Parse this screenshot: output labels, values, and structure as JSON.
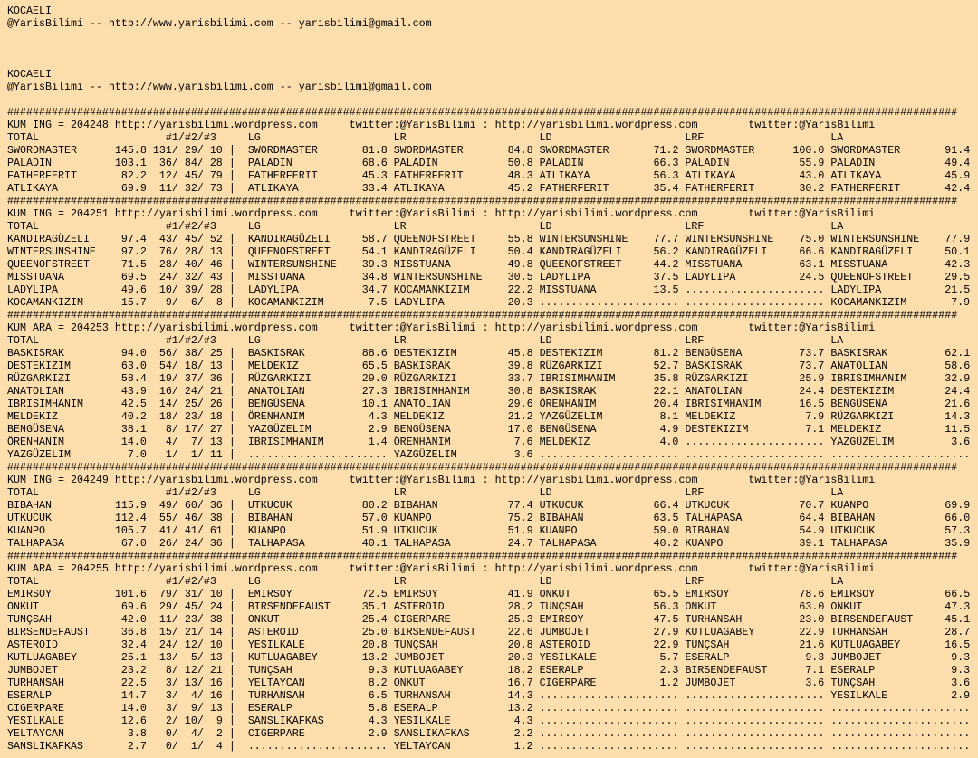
{
  "header_top": {
    "title": "KOCAELI",
    "contact": "@YarisBilimi -- http://www.yarisbilimi.com -- yarisbilimi@gmail.com"
  },
  "header_repeat": {
    "title": "KOCAELI",
    "contact": "@YarisBilimi -- http://www.yarisbilimi.com -- yarisbilimi@gmail.com"
  },
  "rule": "######################################################################################################################################################",
  "url": "http://yarisbilimi.wordpress.com",
  "twitter": "twitter:@YarisBilimi",
  "divider": ":",
  "total_label": "TOTAL",
  "places_label": "#1/#2/#3",
  "place_sep": "/",
  "column_sep": "|",
  "empty_fill": "......................",
  "column_keys": [
    "LG",
    "LR",
    "LD",
    "LRF",
    "LA"
  ],
  "blocks": [
    {
      "title": "KUM ING = 204248",
      "totals": [
        {
          "name": "SWORDMASTER",
          "total": "145.8",
          "places": [
            131,
            29,
            10
          ]
        },
        {
          "name": "PALADIN",
          "total": "103.1",
          "places": [
            36,
            84,
            28
          ]
        },
        {
          "name": "FATHERFERIT",
          "total": "82.2",
          "places": [
            12,
            45,
            79
          ]
        },
        {
          "name": "ATLIKAYA",
          "total": "69.9",
          "places": [
            11,
            32,
            73
          ]
        }
      ],
      "columns": {
        "LG": [
          [
            "SWORDMASTER",
            "81.8"
          ],
          [
            "PALADIN",
            "68.6"
          ],
          [
            "FATHERFERIT",
            "45.3"
          ],
          [
            "ATLIKAYA",
            "33.4"
          ]
        ],
        "LR": [
          [
            "SWORDMASTER",
            "84.8"
          ],
          [
            "PALADIN",
            "50.8"
          ],
          [
            "FATHERFERIT",
            "48.3"
          ],
          [
            "ATLIKAYA",
            "45.2"
          ]
        ],
        "LD": [
          [
            "SWORDMASTER",
            "71.2"
          ],
          [
            "PALADIN",
            "66.3"
          ],
          [
            "ATLIKAYA",
            "56.3"
          ],
          [
            "FATHERFERIT",
            "35.4"
          ]
        ],
        "LRF": [
          [
            "SWORDMASTER",
            "100.0"
          ],
          [
            "PALADIN",
            "55.9"
          ],
          [
            "ATLIKAYA",
            "43.0"
          ],
          [
            "FATHERFERIT",
            "30.2"
          ]
        ],
        "LA": [
          [
            "SWORDMASTER",
            "91.4"
          ],
          [
            "PALADIN",
            "49.4"
          ],
          [
            "ATLIKAYA",
            "45.9"
          ],
          [
            "FATHERFERIT",
            "42.4"
          ]
        ]
      }
    },
    {
      "title": "KUM ING = 204251",
      "totals": [
        {
          "name": "KANDIRAGÜZELI",
          "total": "97.4",
          "places": [
            43,
            45,
            52
          ]
        },
        {
          "name": "WINTERSUNSHINE",
          "total": "97.2",
          "places": [
            76,
            28,
            13
          ]
        },
        {
          "name": "QUEENOFSTREET",
          "total": "71.5",
          "places": [
            28,
            40,
            46
          ]
        },
        {
          "name": "MISSTUANA",
          "total": "69.5",
          "places": [
            24,
            32,
            43
          ]
        },
        {
          "name": "LADYLIPA",
          "total": "49.6",
          "places": [
            10,
            39,
            28
          ]
        },
        {
          "name": "KOCAMANKIZIM",
          "total": "15.7",
          "places": [
            9,
            6,
            8
          ]
        }
      ],
      "columns": {
        "LG": [
          [
            "KANDIRAGÜZELI",
            "58.7"
          ],
          [
            "QUEENOFSTREET",
            "54.1"
          ],
          [
            "WINTERSUNSHINE",
            "39.3"
          ],
          [
            "MISSTUANA",
            "34.8"
          ],
          [
            "LADYLIPA",
            "34.7"
          ],
          [
            "KOCAMANKIZIM",
            "7.5"
          ]
        ],
        "LR": [
          [
            "QUEENOFSTREET",
            "55.8"
          ],
          [
            "KANDIRAGÜZELI",
            "50.4"
          ],
          [
            "MISSTUANA",
            "49.8"
          ],
          [
            "WINTERSUNSHINE",
            "30.5"
          ],
          [
            "KOCAMANKIZIM",
            "22.2"
          ],
          [
            "LADYLIPA",
            "20.3"
          ]
        ],
        "LD": [
          [
            "WINTERSUNSHINE",
            "77.7"
          ],
          [
            "KANDIRAGÜZELI",
            "56.2"
          ],
          [
            "QUEENOFSTREET",
            "44.2"
          ],
          [
            "LADYLIPA",
            "37.5"
          ],
          [
            "MISSTUANA",
            "13.5"
          ],
          null
        ],
        "LRF": [
          [
            "WINTERSUNSHINE",
            "75.0"
          ],
          [
            "KANDIRAGÜZELI",
            "66.6"
          ],
          [
            "MISSTUANA",
            "63.1"
          ],
          [
            "LADYLIPA",
            "24.5"
          ],
          null,
          null
        ],
        "LA": [
          [
            "WINTERSUNSHINE",
            "77.9"
          ],
          [
            "KANDIRAGÜZELI",
            "50.1"
          ],
          [
            "MISSTUANA",
            "42.3"
          ],
          [
            "QUEENOFSTREET",
            "29.5"
          ],
          [
            "LADYLIPA",
            "21.5"
          ],
          [
            "KOCAMANKIZIM",
            "7.9"
          ]
        ]
      }
    },
    {
      "title": "KUM ARA = 204253",
      "totals": [
        {
          "name": "BASKISRAK",
          "total": "94.0",
          "places": [
            56,
            38,
            25
          ]
        },
        {
          "name": "DESTEKIZIM",
          "total": "63.0",
          "places": [
            54,
            18,
            13
          ]
        },
        {
          "name": "RÜZGARKIZI",
          "total": "58.4",
          "places": [
            19,
            37,
            36
          ]
        },
        {
          "name": "ANATOLIAN",
          "total": "43.9",
          "places": [
            16,
            24,
            21
          ]
        },
        {
          "name": "IBRISIMHANIM",
          "total": "42.5",
          "places": [
            14,
            25,
            26
          ]
        },
        {
          "name": "MELDEKIZ",
          "total": "40.2",
          "places": [
            18,
            23,
            18
          ]
        },
        {
          "name": "BENGÜSENA",
          "total": "38.1",
          "places": [
            8,
            17,
            27
          ]
        },
        {
          "name": "ÖRENHANIM",
          "total": "14.0",
          "places": [
            4,
            7,
            13
          ]
        },
        {
          "name": "YAZGÜZELIM",
          "total": "7.0",
          "places": [
            1,
            1,
            11
          ]
        }
      ],
      "columns": {
        "LG": [
          [
            "BASKISRAK",
            "88.6"
          ],
          [
            "MELDEKIZ",
            "65.5"
          ],
          [
            "RÜZGARKIZI",
            "29.0"
          ],
          [
            "ANATOLIAN",
            "27.3"
          ],
          [
            "BENGÜSENA",
            "10.1"
          ],
          [
            "ÖRENHANIM",
            "4.3"
          ],
          [
            "YAZGÜZELIM",
            "2.9"
          ],
          [
            "IBRISIMHANIM",
            "1.4"
          ],
          null
        ],
        "LR": [
          [
            "DESTEKIZIM",
            "45.8"
          ],
          [
            "BASKISRAK",
            "39.8"
          ],
          [
            "RÜZGARKIZI",
            "33.7"
          ],
          [
            "IBRISIMHANIM",
            "30.8"
          ],
          [
            "ANATOLIAN",
            "29.6"
          ],
          [
            "MELDEKIZ",
            "21.2"
          ],
          [
            "BENGÜSENA",
            "17.0"
          ],
          [
            "ÖRENHANIM",
            "7.6"
          ],
          [
            "YAZGÜZELIM",
            "3.6"
          ]
        ],
        "LD": [
          [
            "DESTEKIZIM",
            "81.2"
          ],
          [
            "RÜZGARKIZI",
            "52.7"
          ],
          [
            "IBRISIMHANIM",
            "35.8"
          ],
          [
            "BASKISRAK",
            "22.1"
          ],
          [
            "ÖRENHANIM",
            "20.4"
          ],
          [
            "YAZGÜZELIM",
            "8.1"
          ],
          [
            "BENGÜSENA",
            "4.9"
          ],
          [
            "MELDEKIZ",
            "4.0"
          ],
          null
        ],
        "LRF": [
          [
            "BENGÜSENA",
            "73.7"
          ],
          [
            "BASKISRAK",
            "73.7"
          ],
          [
            "RÜZGARKIZI",
            "25.9"
          ],
          [
            "ANATOLIAN",
            "24.4"
          ],
          [
            "IBRISIMHANIM",
            "16.5"
          ],
          [
            "MELDEKIZ",
            "7.9"
          ],
          [
            "DESTEKIZIM",
            "7.1"
          ],
          null,
          null
        ],
        "LA": [
          [
            "BASKISRAK",
            "62.1"
          ],
          [
            "ANATOLIAN",
            "58.6"
          ],
          [
            "IBRISIMHANIM",
            "32.9"
          ],
          [
            "DESTEKIZIM",
            "24.4"
          ],
          [
            "BENGÜSENA",
            "21.6"
          ],
          [
            "RÜZGARKIZI",
            "14.3"
          ],
          [
            "MELDEKIZ",
            "11.5"
          ],
          [
            "YAZGÜZELIM",
            "3.6"
          ],
          null
        ]
      }
    },
    {
      "title": "KUM ING = 204249",
      "totals": [
        {
          "name": "BIBAHAN",
          "total": "115.9",
          "places": [
            49,
            60,
            36
          ]
        },
        {
          "name": "UTKUCUK",
          "total": "112.4",
          "places": [
            55,
            46,
            38
          ]
        },
        {
          "name": "KUANPO",
          "total": "105.7",
          "places": [
            41,
            41,
            61
          ]
        },
        {
          "name": "TALHAPASA",
          "total": "67.0",
          "places": [
            26,
            24,
            36
          ]
        }
      ],
      "columns": {
        "LG": [
          [
            "UTKUCUK",
            "80.2"
          ],
          [
            "BIBAHAN",
            "57.0"
          ],
          [
            "KUANPO",
            "51.9"
          ],
          [
            "TALHAPASA",
            "40.1"
          ]
        ],
        "LR": [
          [
            "BIBAHAN",
            "77.4"
          ],
          [
            "KUANPO",
            "75.2"
          ],
          [
            "UTKUCUK",
            "51.9"
          ],
          [
            "TALHAPASA",
            "24.7"
          ]
        ],
        "LD": [
          [
            "UTKUCUK",
            "66.4"
          ],
          [
            "BIBAHAN",
            "63.5"
          ],
          [
            "KUANPO",
            "59.0"
          ],
          [
            "TALHAPASA",
            "40.2"
          ]
        ],
        "LRF": [
          [
            "UTKUCUK",
            "70.7"
          ],
          [
            "TALHAPASA",
            "64.4"
          ],
          [
            "BIBAHAN",
            "54.9"
          ],
          [
            "KUANPO",
            "39.1"
          ]
        ],
        "LA": [
          [
            "KUANPO",
            "69.9"
          ],
          [
            "BIBAHAN",
            "66.0"
          ],
          [
            "UTKUCUK",
            "57.3"
          ],
          [
            "TALHAPASA",
            "35.9"
          ]
        ]
      }
    },
    {
      "title": "KUM ARA = 204255",
      "totals": [
        {
          "name": "EMIRSOY",
          "total": "101.6",
          "places": [
            79,
            31,
            10
          ]
        },
        {
          "name": "ONKUT",
          "total": "69.6",
          "places": [
            29,
            45,
            24
          ]
        },
        {
          "name": "TUNÇSAH",
          "total": "42.0",
          "places": [
            11,
            23,
            38
          ]
        },
        {
          "name": "BIRSENDEFAUST",
          "total": "36.8",
          "places": [
            15,
            21,
            14
          ]
        },
        {
          "name": "ASTEROID",
          "total": "32.4",
          "places": [
            24,
            12,
            10
          ]
        },
        {
          "name": "KUTLUAGABEY",
          "total": "25.1",
          "places": [
            13,
            5,
            13
          ]
        },
        {
          "name": "JUMBOJET",
          "total": "23.2",
          "places": [
            8,
            12,
            21
          ]
        },
        {
          "name": "TURHANSAH",
          "total": "22.5",
          "places": [
            3,
            13,
            16
          ]
        },
        {
          "name": "ESERALP",
          "total": "14.7",
          "places": [
            3,
            4,
            16
          ]
        },
        {
          "name": "CIGERPARE",
          "total": "14.0",
          "places": [
            3,
            9,
            13
          ]
        },
        {
          "name": "YESILKALE",
          "total": "12.6",
          "places": [
            2,
            10,
            9
          ]
        },
        {
          "name": "YELTAYCAN",
          "total": "3.8",
          "places": [
            0,
            4,
            2
          ]
        },
        {
          "name": "SANSLIKAFKAS",
          "total": "2.7",
          "places": [
            0,
            1,
            4
          ]
        }
      ],
      "columns": {
        "LG": [
          [
            "EMIRSOY",
            "72.5"
          ],
          [
            "BIRSENDEFAUST",
            "35.1"
          ],
          [
            "ONKUT",
            "25.4"
          ],
          [
            "ASTEROID",
            "25.0"
          ],
          [
            "YESILKALE",
            "20.8"
          ],
          [
            "KUTLUAGABEY",
            "13.2"
          ],
          [
            "TUNÇSAH",
            "9.3"
          ],
          [
            "YELTAYCAN",
            "8.2"
          ],
          [
            "TURHANSAH",
            "6.5"
          ],
          [
            "ESERALP",
            "5.8"
          ],
          [
            "SANSLIKAFKAS",
            "4.3"
          ],
          [
            "CIGERPARE",
            "2.9"
          ],
          null
        ],
        "LR": [
          [
            "EMIRSOY",
            "41.9"
          ],
          [
            "ASTEROID",
            "28.2"
          ],
          [
            "CIGERPARE",
            "25.3"
          ],
          [
            "BIRSENDEFAUST",
            "22.6"
          ],
          [
            "TUNÇSAH",
            "20.8"
          ],
          [
            "JUMBOJET",
            "20.3"
          ],
          [
            "KUTLUAGABEY",
            "18.2"
          ],
          [
            "ONKUT",
            "16.7"
          ],
          [
            "TURHANSAH",
            "14.3"
          ],
          [
            "ESERALP",
            "13.2"
          ],
          [
            "YESILKALE",
            "4.3"
          ],
          [
            "SANSLIKAFKAS",
            "2.2"
          ],
          [
            "YELTAYCAN",
            "1.2"
          ]
        ],
        "LD": [
          [
            "ONKUT",
            "65.5"
          ],
          [
            "TUNÇSAH",
            "56.3"
          ],
          [
            "EMIRSOY",
            "47.5"
          ],
          [
            "JUMBOJET",
            "27.9"
          ],
          [
            "ASTEROID",
            "22.9"
          ],
          [
            "YESILKALE",
            "5.7"
          ],
          [
            "ESERALP",
            "2.3"
          ],
          [
            "CIGERPARE",
            "1.2"
          ],
          null,
          null,
          null,
          null,
          null
        ],
        "LRF": [
          [
            "EMIRSOY",
            "78.6"
          ],
          [
            "ONKUT",
            "63.0"
          ],
          [
            "TURHANSAH",
            "23.0"
          ],
          [
            "KUTLUAGABEY",
            "22.9"
          ],
          [
            "TUNÇSAH",
            "21.6"
          ],
          [
            "ESERALP",
            "9.3"
          ],
          [
            "BIRSENDEFAUST",
            "7.1"
          ],
          [
            "JUMBOJET",
            "3.6"
          ],
          null,
          null,
          null,
          null,
          null
        ],
        "LA": [
          [
            "EMIRSOY",
            "66.5"
          ],
          [
            "ONKUT",
            "47.3"
          ],
          [
            "BIRSENDEFAUST",
            "45.1"
          ],
          [
            "TURHANSAH",
            "28.7"
          ],
          [
            "KUTLUAGABEY",
            "16.5"
          ],
          [
            "JUMBOJET",
            "9.3"
          ],
          [
            "ESERALP",
            "9.3"
          ],
          [
            "TUNÇSAH",
            "3.6"
          ],
          [
            "YESILKALE",
            "2.9"
          ],
          null,
          null,
          null,
          null
        ]
      }
    }
  ]
}
